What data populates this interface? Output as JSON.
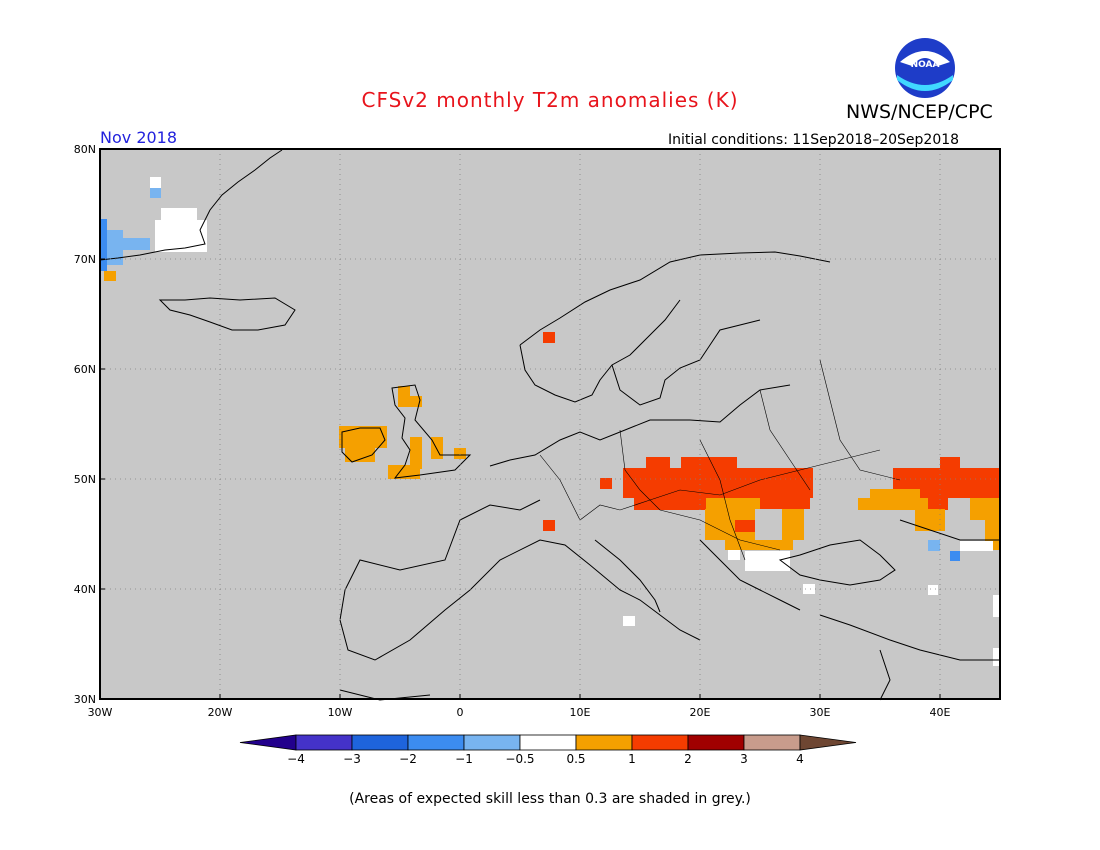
{
  "title": "CFSv2 monthly T2m anomalies (K)",
  "agency": "NWS/NCEP/CPC",
  "logo_text": "NOAA",
  "month_label": "Nov 2018",
  "initial_conditions": "Initial conditions: 11Sep2018–20Sep2018",
  "footnote": "(Areas of expected skill less than 0.3 are shaded in grey.)",
  "map": {
    "lon_range": [
      -30,
      45
    ],
    "lat_range": [
      30,
      80
    ],
    "background_color": "#c8c8c8",
    "lat_ticks": [
      "30N",
      "40N",
      "50N",
      "60N",
      "70N",
      "80N"
    ],
    "lon_ticks": [
      "30W",
      "20W",
      "10W",
      "0",
      "10E",
      "20E",
      "30E",
      "40E"
    ]
  },
  "colorbar": {
    "tick_labels": [
      "−4",
      "−3",
      "−2",
      "−1",
      "−0.5",
      "0.5",
      "1",
      "2",
      "3",
      "4"
    ],
    "colors": [
      "#22008c",
      "#4432c8",
      "#1e64dc",
      "#3c8cf0",
      "#78b4f0",
      "#ffffff",
      "#f5a000",
      "#f53c00",
      "#a00000",
      "#c89c8c",
      "#6e4632"
    ]
  },
  "anomaly_regions": [
    {
      "name": "greenland-east-blue",
      "category": "-1",
      "lon": [
        -30,
        -27
      ],
      "lat": [
        69,
        73
      ]
    },
    {
      "name": "greenland-white",
      "category": "neutral",
      "lon": [
        -27,
        -22
      ],
      "lat": [
        71,
        74
      ]
    },
    {
      "name": "ireland-warm",
      "category": "0.5",
      "lon": [
        -10,
        -6
      ],
      "lat": [
        52,
        54
      ]
    },
    {
      "name": "scotland-warm",
      "category": "0.5",
      "lon": [
        -5,
        -3
      ],
      "lat": [
        57,
        59
      ]
    },
    {
      "name": "england-warm",
      "category": "0.5",
      "lon": [
        -4,
        1
      ],
      "lat": [
        50,
        53
      ]
    },
    {
      "name": "norway-red",
      "category": "1",
      "lon": [
        7,
        8
      ],
      "lat": [
        62,
        63
      ]
    },
    {
      "name": "alps-red",
      "category": "1",
      "lon": [
        7,
        8
      ],
      "lat": [
        45,
        46
      ]
    },
    {
      "name": "central-europe-red",
      "category": "1",
      "lon": [
        14,
        30
      ],
      "lat": [
        47,
        52
      ]
    },
    {
      "name": "romania-orange",
      "category": "0.5",
      "lon": [
        21,
        28
      ],
      "lat": [
        44,
        47
      ]
    },
    {
      "name": "ukraine-russia-red",
      "category": "1",
      "lon": [
        36,
        45
      ],
      "lat": [
        47,
        52
      ]
    },
    {
      "name": "black-sea-orange",
      "category": "0.5",
      "lon": [
        33,
        45
      ],
      "lat": [
        45,
        48
      ]
    },
    {
      "name": "caucasus-blue",
      "category": "-1",
      "lon": [
        39,
        41
      ],
      "lat": [
        42,
        44
      ]
    },
    {
      "name": "balkans-white",
      "category": "neutral",
      "lon": [
        23,
        28
      ],
      "lat": [
        41,
        44
      ]
    }
  ]
}
